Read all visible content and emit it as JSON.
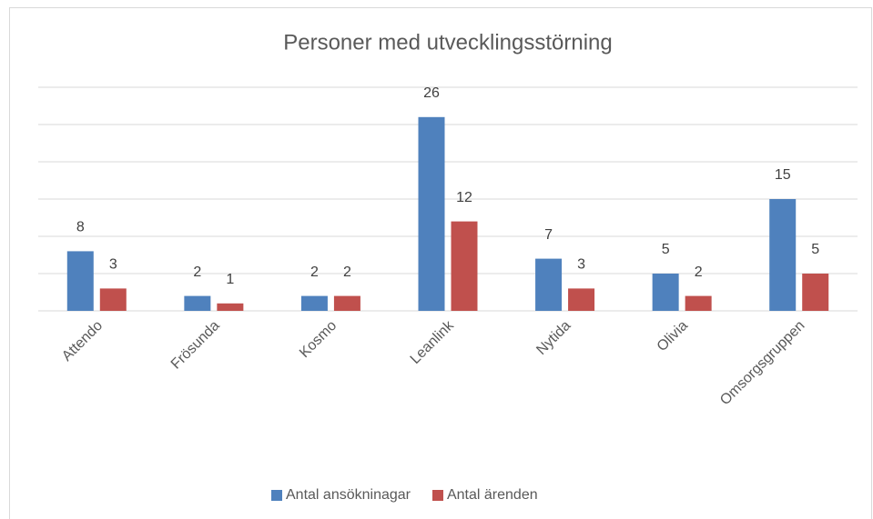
{
  "chart_data": {
    "type": "bar",
    "title": "Personer med utvecklingsstörning",
    "categories": [
      "Attendo",
      "Frösunda",
      "Kosmo",
      "Leanlink",
      "Nytida",
      "Olivia",
      "Omsorgsgruppen"
    ],
    "series": [
      {
        "name": "Antal ansökninagar",
        "color": "#4f81bd",
        "values": [
          8,
          2,
          2,
          26,
          7,
          5,
          15
        ]
      },
      {
        "name": "Antal ärenden",
        "color": "#c0504d",
        "values": [
          3,
          1,
          2,
          12,
          3,
          2,
          5
        ]
      }
    ],
    "ylim": [
      0,
      30
    ],
    "yticks": [
      0,
      5,
      10,
      15,
      20,
      25,
      30
    ],
    "grid": true,
    "legend": "bottom"
  }
}
